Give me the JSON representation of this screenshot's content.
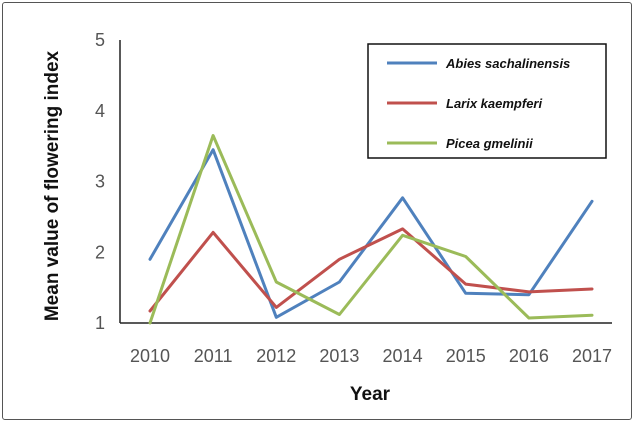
{
  "chart_data": {
    "type": "line",
    "title": "",
    "xlabel": "Year",
    "ylabel": "Mean value of flowering index",
    "categories": [
      "2010",
      "2011",
      "2012",
      "2013",
      "2014",
      "2015",
      "2016",
      "2017"
    ],
    "ylim": [
      1,
      5
    ],
    "yticks": [
      "1",
      "2",
      "3",
      "4",
      "5"
    ],
    "grid": false,
    "legend_position": "top-right",
    "series": [
      {
        "name": "Abies sachalinensis",
        "color": "#4f81bd",
        "values": [
          1.9,
          3.45,
          1.08,
          1.58,
          2.77,
          1.42,
          1.4,
          2.72
        ]
      },
      {
        "name": "Larix kaempferi",
        "color": "#c0504d",
        "values": [
          1.17,
          2.28,
          1.22,
          1.9,
          2.33,
          1.55,
          1.44,
          1.48
        ]
      },
      {
        "name": "Picea gmelinii",
        "color": "#9bbb59",
        "values": [
          1.0,
          3.65,
          1.58,
          1.12,
          2.24,
          1.94,
          1.07,
          1.11
        ]
      }
    ]
  }
}
